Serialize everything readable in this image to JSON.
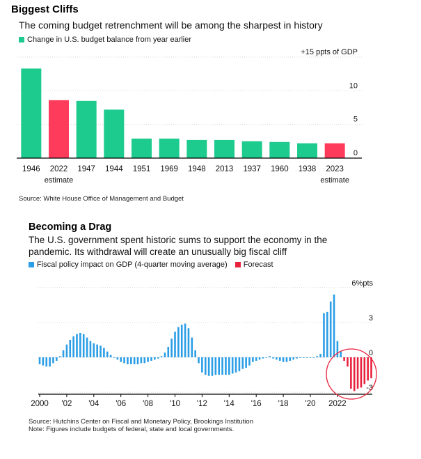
{
  "chart1": {
    "title": "Biggest Cliffs",
    "subtitle": "The coming budget retrenchment will be among the sharpest in history",
    "legend": "Change in U.S. budget balance from year earlier",
    "source": "Source: White House Office of Management and Budget",
    "colors": {
      "actual": "#1dcb8e",
      "estimate": "#ff3b5c"
    }
  },
  "chart2": {
    "title": "Becoming a Drag",
    "subtitle_line1": "The U.S. government spent historic sums to support the economy in the",
    "subtitle_line2": "pandemic. Its withdrawal will create an unusually big fiscal cliff",
    "legend_actual": "Fiscal policy impact on GDP (4-quarter moving average)",
    "legend_forecast": "Forecast",
    "source_line1": "Source: Hutchins Center on Fiscal and Monetary Policy, Brookings Institution",
    "source_line2": "Note: Figures include budgets of federal, state and local governments.",
    "colors": {
      "actual": "#2b9ee6",
      "forecast": "#e8223c",
      "circle": "#e8223c"
    }
  },
  "chart_data": [
    {
      "type": "bar",
      "title": "Biggest Cliffs",
      "subtitle": "The coming budget retrenchment will be among the sharpest in history",
      "ylabel": "ppts of GDP",
      "ylim": [
        0,
        15
      ],
      "yticks": [
        {
          "v": 15,
          "label": "+15 ppts of GDP"
        },
        {
          "v": 10,
          "label": "10"
        },
        {
          "v": 5,
          "label": "5"
        },
        {
          "v": 0,
          "label": "0"
        }
      ],
      "categories": [
        "1946",
        "2022",
        "1947",
        "1944",
        "1951",
        "1969",
        "1948",
        "2013",
        "1937",
        "1960",
        "1938",
        "2023"
      ],
      "category_sublabels": [
        "",
        "estimate",
        "",
        "",
        "",
        "",
        "",
        "",
        "",
        "",
        "",
        "estimate"
      ],
      "values": [
        13.3,
        8.6,
        8.5,
        7.2,
        2.9,
        2.9,
        2.7,
        2.7,
        2.5,
        2.4,
        2.2,
        2.2
      ],
      "estimate": [
        false,
        true,
        false,
        false,
        false,
        false,
        false,
        false,
        false,
        false,
        false,
        true
      ],
      "legend": [
        "Change in U.S. budget balance from year earlier"
      ],
      "grid": true
    },
    {
      "type": "bar",
      "title": "Becoming a Drag",
      "ylabel": "%pts",
      "ylim": [
        -3.7,
        6.1
      ],
      "yticks": [
        {
          "v": 6,
          "label": "6%pts"
        },
        {
          "v": 3,
          "label": "3"
        },
        {
          "v": 0,
          "label": "0"
        },
        {
          "v": -3,
          "label": "-3"
        }
      ],
      "x_tick_labels": [
        "2000",
        "'02",
        "'04",
        "'06",
        "'08",
        "'10",
        "'12",
        "'14",
        "'16",
        "'18",
        "'20",
        "2022"
      ],
      "x_tick_years": [
        2000,
        2002,
        2004,
        2006,
        2008,
        2010,
        2012,
        2014,
        2016,
        2018,
        2020,
        2022
      ],
      "x_start": 2000.0,
      "x_step": 0.25,
      "series": [
        {
          "name": "Fiscal policy impact on GDP (4-quarter moving average)",
          "values": [
            -0.6,
            -0.7,
            -0.8,
            -0.8,
            -0.5,
            -0.3,
            0.1,
            0.6,
            1.1,
            1.5,
            1.8,
            2.0,
            2.1,
            2.0,
            1.7,
            1.4,
            1.2,
            1.1,
            1.0,
            0.8,
            0.5,
            0.2,
            0.0,
            -0.2,
            -0.4,
            -0.5,
            -0.6,
            -0.6,
            -0.6,
            -0.6,
            -0.5,
            -0.5,
            -0.4,
            -0.3,
            -0.2,
            -0.1,
            0.1,
            0.4,
            0.9,
            1.6,
            2.2,
            2.6,
            2.8,
            2.9,
            2.5,
            1.7,
            0.6,
            -0.5,
            -1.3,
            -1.5,
            -1.6,
            -1.6,
            -1.5,
            -1.5,
            -1.5,
            -1.5,
            -1.5,
            -1.4,
            -1.3,
            -1.2,
            -1.0,
            -0.9,
            -0.7,
            -0.4,
            -0.3,
            -0.2,
            -0.1,
            0.0,
            0.1,
            -0.1,
            -0.2,
            -0.3,
            -0.4,
            -0.4,
            -0.3,
            -0.2,
            -0.1,
            0.0,
            0.0,
            0.0,
            0.0,
            0.0,
            0.1,
            0.3,
            3.8,
            3.9,
            4.8,
            5.4,
            1.4,
            0.5
          ]
        },
        {
          "name": "Forecast",
          "start_index": 90,
          "values": [
            -0.3,
            -0.8,
            -2.7,
            -2.9,
            -2.7,
            -2.6,
            -2.3,
            -2.0,
            -1.8
          ]
        }
      ],
      "legend": [
        "Fiscal policy impact on GDP (4-quarter moving average)",
        "Forecast"
      ],
      "annotation": "red circle highlighting forecast drag",
      "grid": true
    }
  ]
}
